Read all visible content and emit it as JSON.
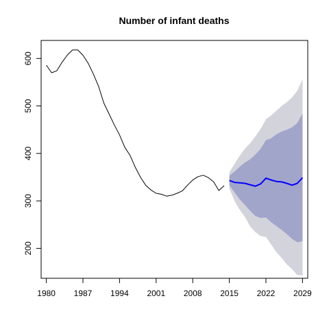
{
  "chart_data": {
    "type": "line",
    "title": "Number of infant deaths",
    "xlabel": "",
    "ylabel": "",
    "xlim": [
      1979,
      2030
    ],
    "ylim": [
      137,
      638
    ],
    "x_ticks": [
      1980,
      1987,
      1994,
      2001,
      2008,
      2015,
      2022,
      2029
    ],
    "y_ticks": [
      200,
      300,
      400,
      500,
      600
    ],
    "grid": false,
    "legend": "none",
    "series": [
      {
        "role": "history",
        "color": "#000000",
        "x": [
          1980,
          1981,
          1982,
          1983,
          1984,
          1985,
          1986,
          1987,
          1988,
          1989,
          1990,
          1991,
          1992,
          1993,
          1994,
          1995,
          1996,
          1997,
          1998,
          1999,
          2000,
          2001,
          2002,
          2003,
          2004,
          2005,
          2006,
          2007,
          2008,
          2009,
          2010,
          2011,
          2012,
          2013,
          2014
        ],
        "values": [
          586,
          570,
          574,
          592,
          607,
          618,
          618,
          607,
          590,
          567,
          541,
          506,
          483,
          460,
          439,
          413,
          396,
          371,
          350,
          333,
          323,
          316,
          314,
          310,
          312,
          316,
          321,
          333,
          344,
          351,
          354,
          349,
          340,
          322,
          332
        ]
      },
      {
        "role": "forecast",
        "color": "#0000ff",
        "x": [
          2015,
          2016,
          2017,
          2018,
          2019,
          2020,
          2021,
          2022,
          2023,
          2024,
          2025,
          2026,
          2027,
          2028,
          2029
        ],
        "values": [
          343,
          339,
          338,
          337,
          334,
          331,
          336,
          348,
          344,
          341,
          340,
          337,
          333,
          337,
          349
        ]
      }
    ],
    "bands": [
      {
        "level": "outer",
        "color": "#d3d3db",
        "x": [
          2015,
          2016,
          2017,
          2018,
          2019,
          2020,
          2021,
          2022,
          2023,
          2024,
          2025,
          2026,
          2027,
          2028,
          2029
        ],
        "upper": [
          360,
          378,
          395,
          410,
          422,
          436,
          452,
          472,
          480,
          490,
          500,
          508,
          518,
          532,
          556
        ],
        "lower": [
          326,
          300,
          281,
          266,
          246,
          234,
          226,
          224,
          208,
          192,
          180,
          166,
          156,
          144,
          143
        ]
      },
      {
        "level": "inner",
        "color": "#a2a5ca",
        "x": [
          2015,
          2016,
          2017,
          2018,
          2019,
          2020,
          2021,
          2022,
          2023,
          2024,
          2025,
          2026,
          2027,
          2028,
          2029
        ],
        "upper": [
          353,
          362,
          372,
          381,
          388,
          398,
          410,
          428,
          432,
          440,
          446,
          450,
          455,
          464,
          484
        ],
        "lower": [
          333,
          318,
          303,
          291,
          279,
          268,
          264,
          265,
          255,
          247,
          239,
          230,
          220,
          213,
          215
        ]
      }
    ]
  }
}
